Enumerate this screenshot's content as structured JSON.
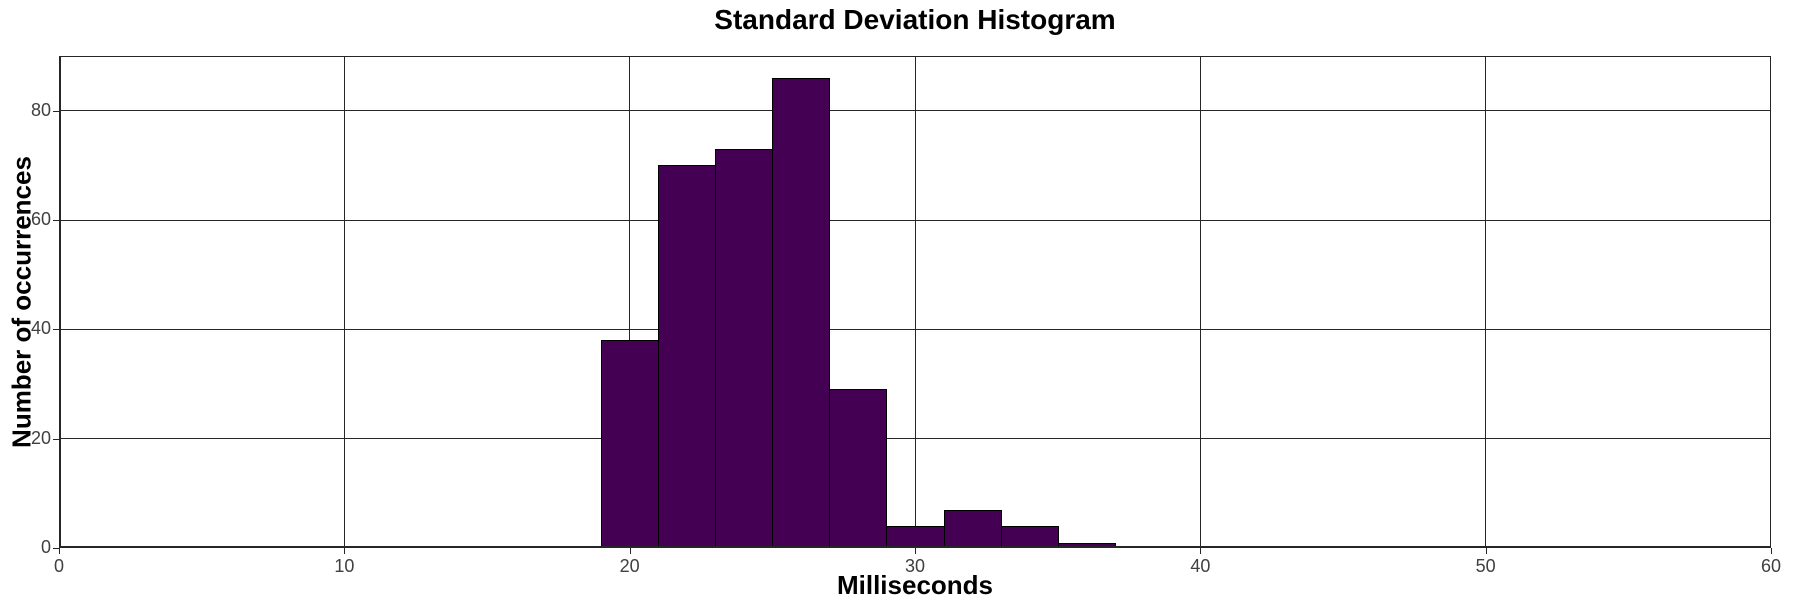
{
  "chart_data": {
    "type": "bar",
    "subtype": "histogram",
    "title": "Standard Deviation Histogram",
    "xlabel": "Milliseconds",
    "ylabel": "Number of occurrences",
    "xlim": [
      0,
      60
    ],
    "ylim": [
      0,
      90
    ],
    "x_ticks": [
      0,
      10,
      20,
      30,
      40,
      50,
      60
    ],
    "y_ticks": [
      0,
      20,
      40,
      60,
      80
    ],
    "grid": true,
    "legend": "none",
    "bin_edges": [
      19,
      21,
      23,
      25,
      27,
      29,
      31,
      33,
      35,
      37
    ],
    "counts": [
      38,
      70,
      73,
      86,
      29,
      4,
      7,
      4,
      1
    ],
    "bar_color": "#440154",
    "bar_edge_color": "#000000",
    "grid_color": "#262626",
    "background_color": "#ffffff",
    "text_color": "#000000",
    "tick_label_color": "#404040"
  }
}
